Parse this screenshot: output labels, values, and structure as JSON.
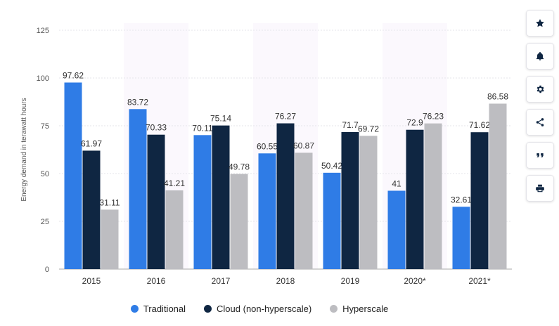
{
  "chart_data": {
    "type": "bar",
    "categories": [
      "2015",
      "2016",
      "2017",
      "2018",
      "2019",
      "2020*",
      "2021*"
    ],
    "series": [
      {
        "name": "Traditional",
        "color": "#2f7ce6",
        "values": [
          97.62,
          83.72,
          70.11,
          60.55,
          50.42,
          41,
          32.61
        ],
        "labels": [
          "97.62",
          "83.72",
          "70.11",
          "60.55",
          "50.42",
          "41",
          "32.61"
        ]
      },
      {
        "name": "Cloud (non-hyperscale)",
        "color": "#0f2642",
        "values": [
          61.97,
          70.33,
          75.14,
          76.27,
          71.7,
          72.9,
          71.62
        ],
        "labels": [
          "61.97",
          "70.33",
          "75.14",
          "76.27",
          "71.7",
          "72.9",
          "71.62"
        ]
      },
      {
        "name": "Hyperscale",
        "color": "#bdbdc1",
        "values": [
          31.11,
          41.21,
          49.78,
          60.87,
          69.72,
          76.23,
          86.58
        ],
        "labels": [
          "31.11",
          "41.21",
          "49.78",
          "60.87",
          "69.72",
          "76.23",
          "86.58"
        ]
      }
    ],
    "title": "",
    "xlabel": "",
    "ylabel": "Energy demand in terawatt hours",
    "ylim": [
      0,
      125
    ],
    "yticks": [
      "0",
      "25",
      "50",
      "75",
      "100",
      "125"
    ],
    "grid": true,
    "legend_position": "bottom"
  },
  "toolbar": {
    "buttons": [
      {
        "name": "star-icon"
      },
      {
        "name": "bell-icon"
      },
      {
        "name": "gear-icon"
      },
      {
        "name": "share-icon"
      },
      {
        "name": "quote-icon"
      },
      {
        "name": "print-icon"
      }
    ]
  }
}
